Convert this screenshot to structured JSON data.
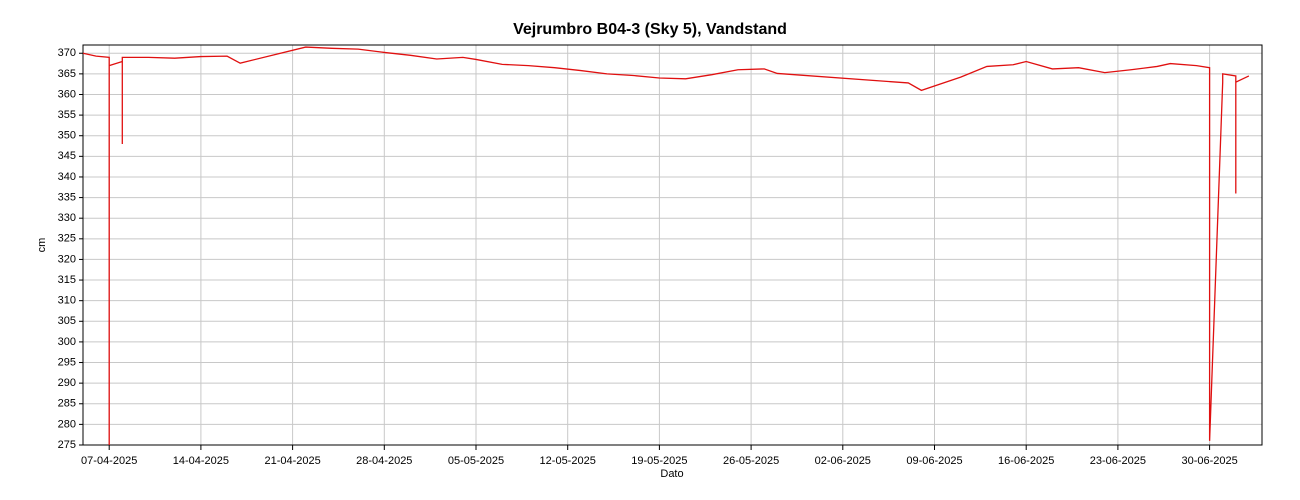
{
  "chart_data": {
    "type": "line",
    "title": "Vejrumbro B04-3 (Sky 5), Vandstand",
    "x_label": "Dato",
    "y_label": "cm",
    "x": [
      "2025-04-05",
      "2025-04-06",
      "2025-04-07",
      "2025-04-07",
      "2025-04-07",
      "2025-04-08",
      "2025-04-08",
      "2025-04-08",
      "2025-04-10",
      "2025-04-12",
      "2025-04-14",
      "2025-04-16",
      "2025-04-17",
      "2025-04-22",
      "2025-04-24",
      "2025-04-26",
      "2025-04-28",
      "2025-04-30",
      "2025-05-02",
      "2025-05-04",
      "2025-05-05",
      "2025-05-07",
      "2025-05-09",
      "2025-05-11",
      "2025-05-13",
      "2025-05-15",
      "2025-05-17",
      "2025-05-19",
      "2025-05-21",
      "2025-05-23",
      "2025-05-25",
      "2025-05-27",
      "2025-05-28",
      "2025-06-07",
      "2025-06-08",
      "2025-06-11",
      "2025-06-13",
      "2025-06-15",
      "2025-06-16",
      "2025-06-18",
      "2025-06-20",
      "2025-06-22",
      "2025-06-24",
      "2025-06-26",
      "2025-06-27",
      "2025-06-29",
      "2025-06-30",
      "2025-06-30",
      "2025-07-01",
      "2025-07-01",
      "2025-07-02",
      "2025-07-02",
      "2025-07-02",
      "2025-07-03"
    ],
    "series": [
      {
        "name": "Vandstand",
        "color": "#e01010",
        "values": [
          370,
          369.3,
          369,
          275,
          367,
          368,
          348,
          369,
          369,
          368.8,
          369.2,
          369.3,
          367.6,
          371.5,
          371.2,
          371,
          370.2,
          369.5,
          368.6,
          369,
          368.5,
          367.3,
          367,
          366.5,
          365.8,
          365,
          364.6,
          364,
          363.8,
          364.8,
          366,
          366.2,
          365.1,
          362.8,
          361,
          364.2,
          366.8,
          367.2,
          368,
          366.2,
          366.5,
          365.3,
          366,
          366.8,
          367.5,
          367,
          366.5,
          276,
          363,
          365,
          364.5,
          336,
          363,
          364.5
        ]
      }
    ],
    "xlim": [
      "2025-04-05",
      "2025-07-04"
    ],
    "xticks": [
      {
        "value": "2025-04-07",
        "label": "07-04-2025"
      },
      {
        "value": "2025-04-14",
        "label": "14-04-2025"
      },
      {
        "value": "2025-04-21",
        "label": "21-04-2025"
      },
      {
        "value": "2025-04-28",
        "label": "28-04-2025"
      },
      {
        "value": "2025-05-05",
        "label": "05-05-2025"
      },
      {
        "value": "2025-05-12",
        "label": "12-05-2025"
      },
      {
        "value": "2025-05-19",
        "label": "19-05-2025"
      },
      {
        "value": "2025-05-26",
        "label": "26-05-2025"
      },
      {
        "value": "2025-06-02",
        "label": "02-06-2025"
      },
      {
        "value": "2025-06-09",
        "label": "09-06-2025"
      },
      {
        "value": "2025-06-16",
        "label": "16-06-2025"
      },
      {
        "value": "2025-06-23",
        "label": "23-06-2025"
      },
      {
        "value": "2025-06-30",
        "label": "30-06-2025"
      }
    ],
    "ylim": [
      275,
      372
    ],
    "yticks": [
      275,
      280,
      285,
      290,
      295,
      300,
      305,
      310,
      315,
      320,
      325,
      330,
      335,
      340,
      345,
      350,
      355,
      360,
      365,
      370
    ],
    "grid": true
  }
}
